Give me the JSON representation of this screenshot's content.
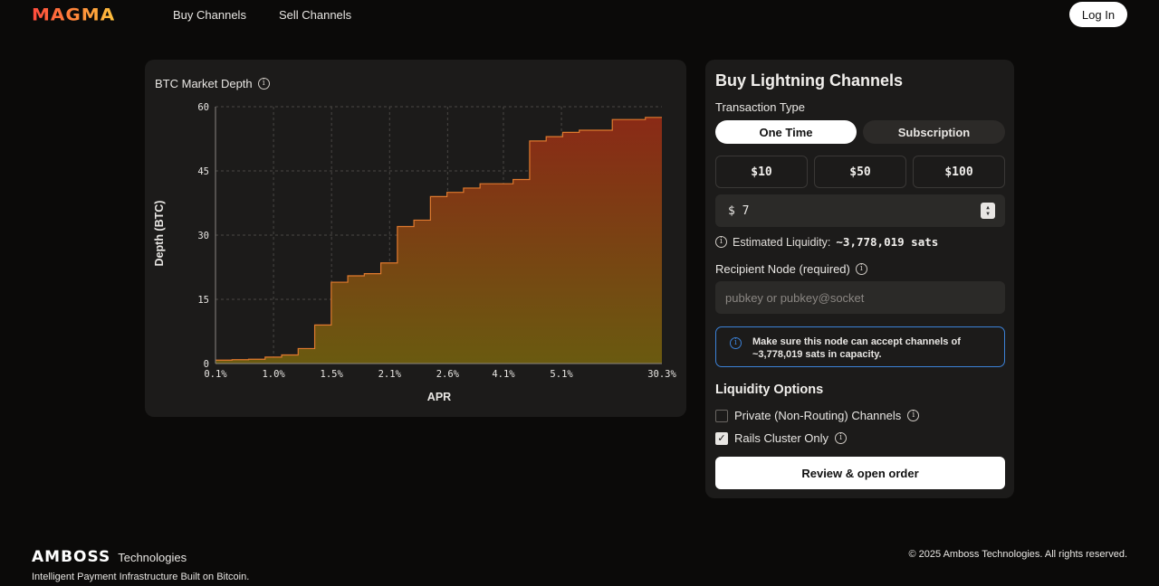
{
  "header": {
    "logo": "MAGMA",
    "nav": [
      "Buy Channels",
      "Sell Channels"
    ],
    "login_label": "Log In"
  },
  "chart_card": {
    "title": "BTC Market Depth"
  },
  "chart_data": {
    "type": "area",
    "step": true,
    "title": "BTC Market Depth",
    "xlabel": "APR",
    "ylabel": "Depth (BTC)",
    "x_tick_labels": [
      "0.1%",
      "1.0%",
      "1.5%",
      "2.1%",
      "2.6%",
      "4.1%",
      "5.1%",
      "30.3%"
    ],
    "y_ticks": [
      0,
      15,
      30,
      45,
      60
    ],
    "ylim": [
      0,
      60
    ],
    "grid": true,
    "series": [
      {
        "values": [
          0.8,
          0.9,
          1.0,
          1.5,
          2.0,
          3.5,
          9.0,
          19.0,
          20.5,
          21.0,
          23.5,
          32.0,
          33.5,
          39.0,
          40.0,
          41.0,
          42.0,
          42.0,
          43.0,
          52.0,
          53.0,
          54.0,
          54.5,
          54.5,
          57.0,
          57.0,
          57.5
        ]
      }
    ],
    "colors": {
      "line": "#e07a2e",
      "fill_top": "#8a2a16",
      "fill_bottom": "#6a5a10"
    }
  },
  "buy_card": {
    "title": "Buy Lightning Channels",
    "transaction_type_label": "Transaction Type",
    "tabs": [
      {
        "label": "One Time",
        "active": true
      },
      {
        "label": "Subscription",
        "active": false
      }
    ],
    "amounts": [
      "$10",
      "$50",
      "$100"
    ],
    "amount_prefix": "$",
    "amount_value": "7",
    "estimated_label": "Estimated Liquidity:",
    "estimated_value": "~3,778,019 sats",
    "recipient_label": "Recipient Node (required)",
    "recipient_placeholder": "pubkey or pubkey@socket",
    "alert_text": "Make sure this node can accept channels of ~3,778,019 sats in capacity.",
    "liquidity_title": "Liquidity Options",
    "options": [
      {
        "label": "Private (Non-Routing) Channels",
        "checked": false
      },
      {
        "label": "Rails Cluster Only",
        "checked": true
      }
    ],
    "review_label": "Review & open order"
  },
  "footer": {
    "logo": "AMBOSS",
    "logo_sub": "Technologies",
    "tagline": "Intelligent Payment Infrastructure Built on Bitcoin.",
    "copyright": "© 2025 Amboss Technologies. All rights reserved."
  }
}
